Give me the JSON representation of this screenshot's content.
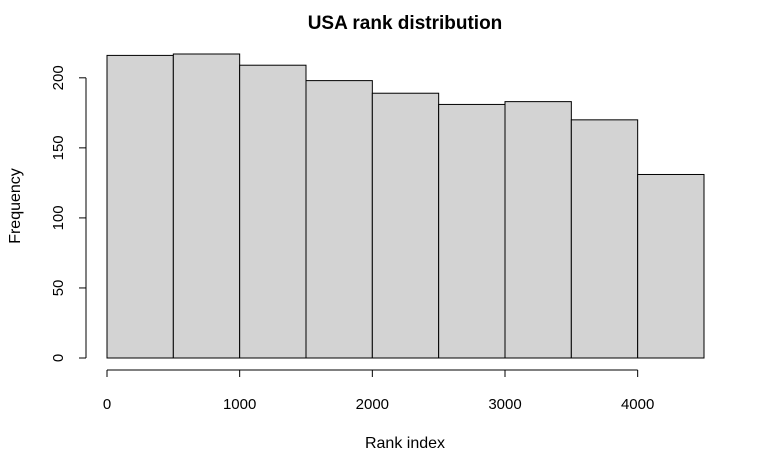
{
  "chart_data": {
    "type": "bar",
    "title": "USA rank  distribution",
    "xlabel": "Rank index",
    "ylabel": "Frequency",
    "bins": [
      {
        "start": 0,
        "end": 500,
        "value": 216
      },
      {
        "start": 500,
        "end": 1000,
        "value": 217
      },
      {
        "start": 1000,
        "end": 1500,
        "value": 209
      },
      {
        "start": 1500,
        "end": 2000,
        "value": 198
      },
      {
        "start": 2000,
        "end": 2500,
        "value": 189
      },
      {
        "start": 2500,
        "end": 3000,
        "value": 181
      },
      {
        "start": 3000,
        "end": 3500,
        "value": 183
      },
      {
        "start": 3500,
        "end": 4000,
        "value": 170
      },
      {
        "start": 4000,
        "end": 4500,
        "value": 131
      }
    ],
    "xlim": [
      0,
      4500
    ],
    "ylim": [
      0,
      217
    ],
    "xticks": [
      0,
      1000,
      2000,
      3000,
      4000
    ],
    "xtick_labels": [
      "0",
      "1000",
      "2000",
      "3000",
      "4000"
    ],
    "yticks": [
      0,
      50,
      100,
      150,
      200
    ],
    "ytick_labels": [
      "0",
      "50",
      "100",
      "150",
      "200"
    ],
    "bar_color": "#d3d3d3",
    "edge_color": "#000000",
    "grid": false
  }
}
